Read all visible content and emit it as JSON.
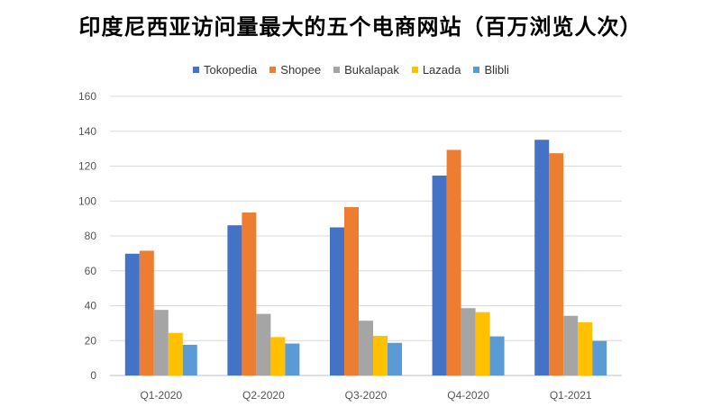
{
  "chart_data": {
    "type": "bar",
    "title": "印度尼西亚访问量最大的五个电商网站（百万浏览人次）",
    "categories": [
      "Q1-2020",
      "Q2-2020",
      "Q3-2020",
      "Q4-2020",
      "Q1-2021"
    ],
    "series": [
      {
        "name": "Tokopedia",
        "color": "#4472C4",
        "values": [
          69.8,
          86.1,
          84.9,
          114.6,
          135.1
        ]
      },
      {
        "name": "Shopee",
        "color": "#ED7D31",
        "values": [
          71.5,
          93.4,
          96.5,
          129.3,
          127.4
        ]
      },
      {
        "name": "Bukalapak",
        "color": "#A5A5A5",
        "values": [
          37.6,
          35.3,
          31.4,
          38.6,
          34.2
        ]
      },
      {
        "name": "Lazada",
        "color": "#FFC000",
        "values": [
          24.4,
          22.0,
          22.7,
          36.3,
          30.5
        ]
      },
      {
        "name": "Blibli",
        "color": "#5B9BD5",
        "values": [
          17.6,
          18.3,
          18.7,
          22.4,
          19.8
        ]
      }
    ],
    "ylim": [
      0,
      160
    ],
    "yticks": [
      0,
      20,
      40,
      60,
      80,
      100,
      120,
      140,
      160
    ],
    "grid": true,
    "legend_position": "top"
  }
}
